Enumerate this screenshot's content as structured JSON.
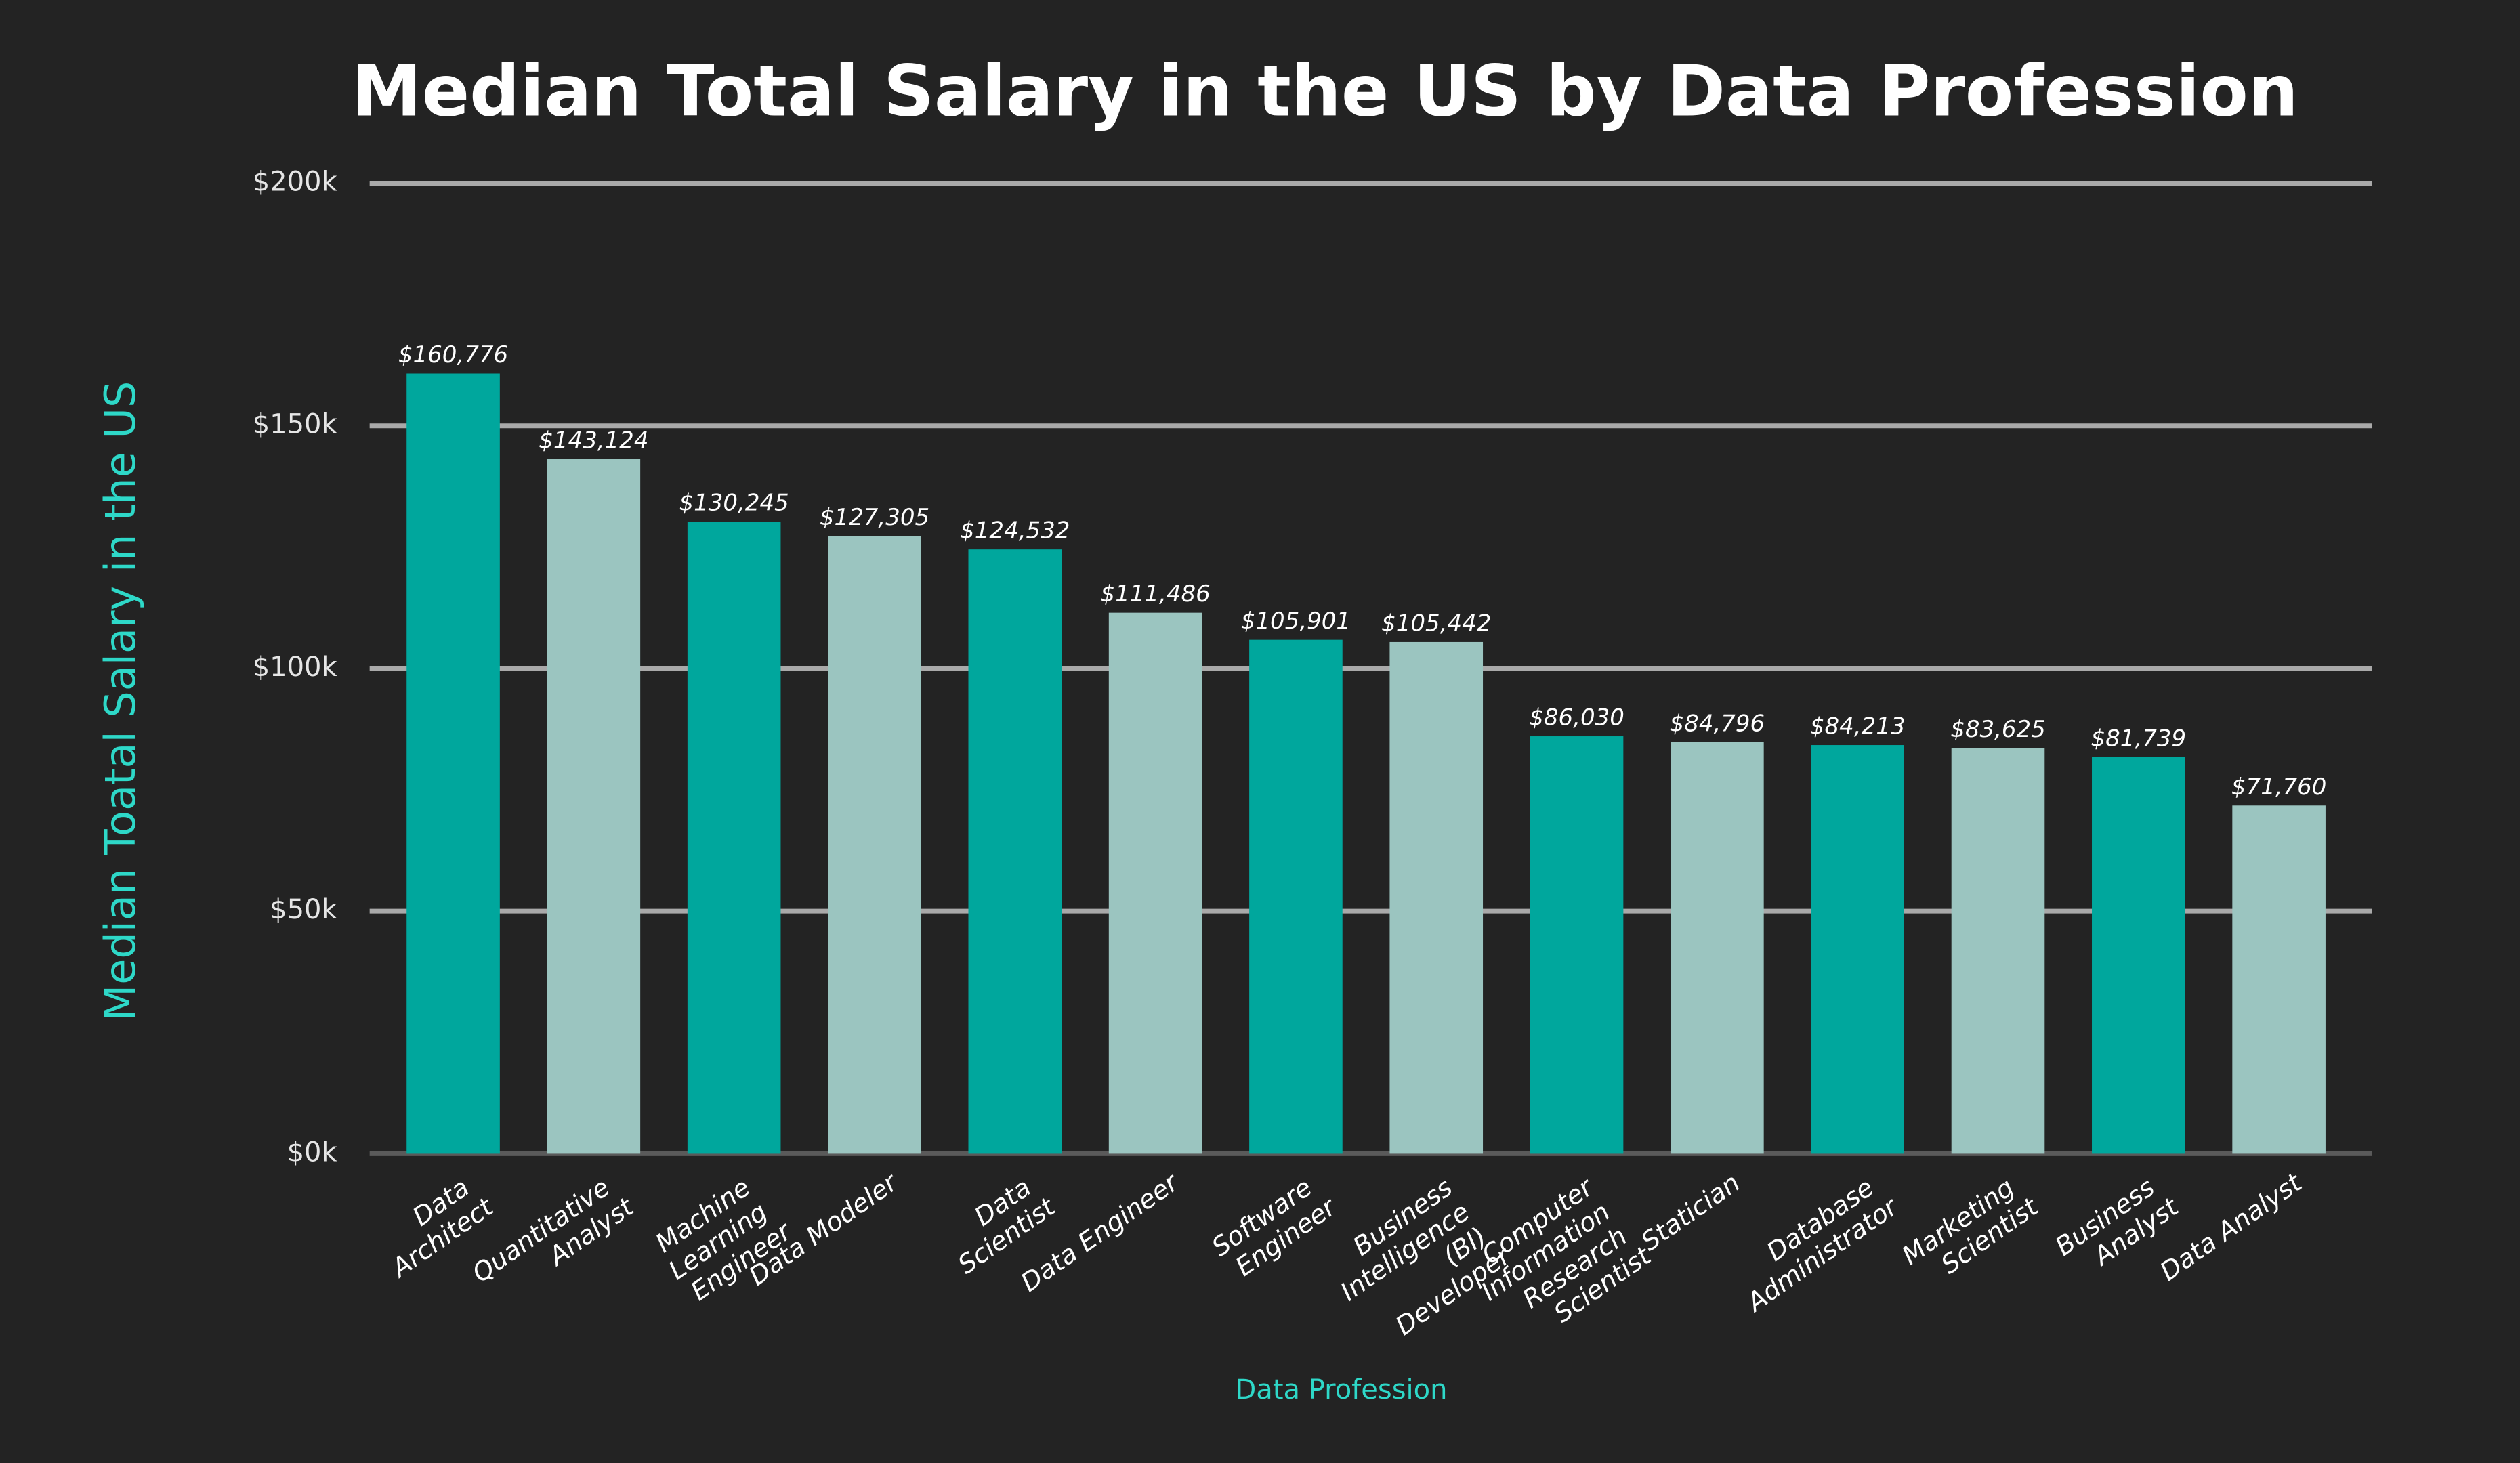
{
  "chart_data": {
    "type": "bar",
    "title": "Median Total Salary in the US by Data Profession",
    "x_label": "Data Profession",
    "y_label": "Median Toatal Salary in the US",
    "categories": [
      "Data Architect",
      "Quantitative Analyst",
      "Machine Learning Engineer",
      "Data Modeler",
      "Data Scientist",
      "Data Engineer",
      "Software Engineer",
      "Business Intelligence (BI) Developer",
      "Computer Information Research  Scientist",
      "Statician",
      "Database Administrator",
      "Marketing Scientist",
      "Business Analyst",
      "Data Analyst"
    ],
    "values": [
      160776,
      143124,
      130245,
      127305,
      124532,
      111486,
      105901,
      105442,
      86030,
      84796,
      84213,
      83625,
      81739,
      71760
    ],
    "value_labels": [
      "$160,776",
      "$143,124",
      "$130,245",
      "$127,305",
      "$124,532",
      "$111,486",
      "$105,901",
      "$105,442",
      "$86,030",
      "$84,796",
      "$84,213",
      "$83,625",
      "$81,739",
      "$71,760"
    ],
    "colors": [
      "#00a79d",
      "#9bc5c0",
      "#00a79d",
      "#9bc5c0",
      "#00a79d",
      "#9bc5c0",
      "#00a79d",
      "#9bc5c0",
      "#00a79d",
      "#9bc5c0",
      "#00a79d",
      "#9bc5c0",
      "#00a79d",
      "#9bc5c0"
    ],
    "ylim": [
      0,
      200000
    ],
    "yticks": [
      {
        "value": 0,
        "label": "$0k"
      },
      {
        "value": 50000,
        "label": "$50k"
      },
      {
        "value": 100000,
        "label": "$100k"
      },
      {
        "value": 150000,
        "label": "$150k"
      },
      {
        "value": 200000,
        "label": "$200k"
      }
    ],
    "grid": true
  }
}
